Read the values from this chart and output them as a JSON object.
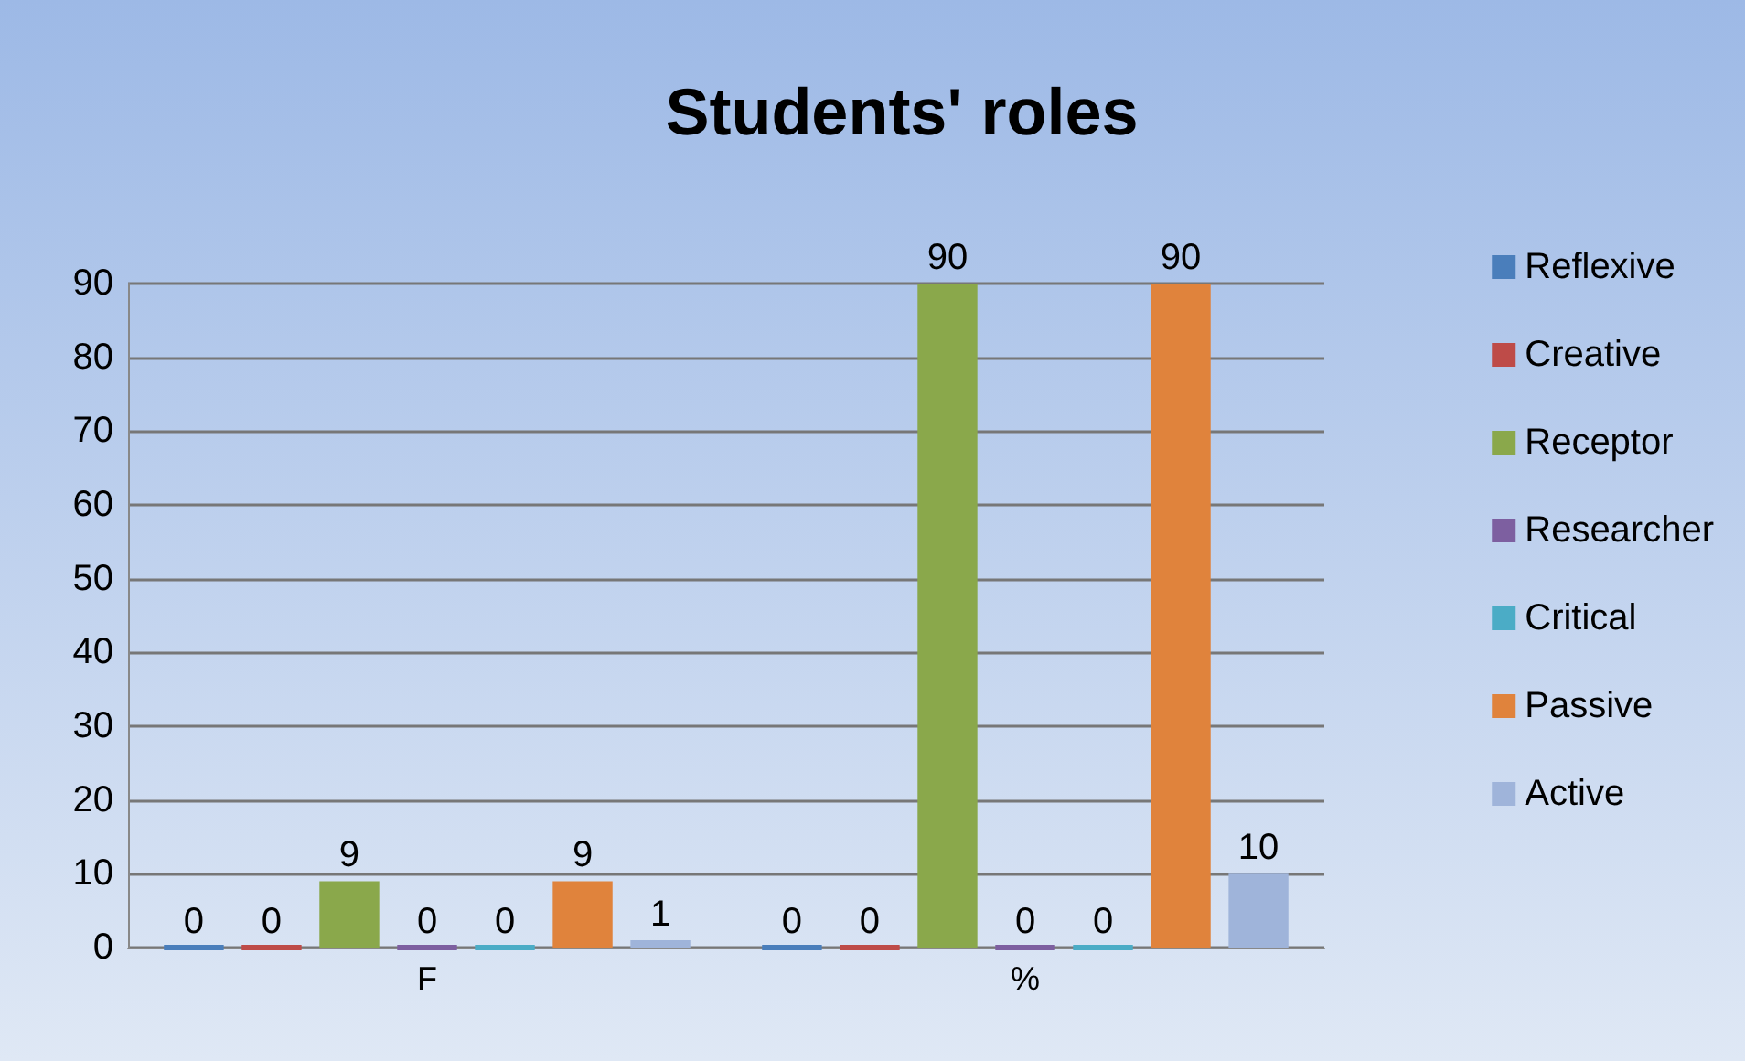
{
  "chart_data": {
    "type": "bar",
    "title": "Students' roles",
    "categories": [
      "F",
      "%"
    ],
    "series": [
      {
        "name": "Reflexive",
        "color": "#4a7ebb",
        "values": [
          0,
          0
        ]
      },
      {
        "name": "Creative",
        "color": "#be4b48",
        "values": [
          0,
          0
        ]
      },
      {
        "name": "Receptor",
        "color": "#8aa84b",
        "values": [
          9,
          90
        ]
      },
      {
        "name": "Researcher",
        "color": "#7d5fa0",
        "values": [
          0,
          0
        ]
      },
      {
        "name": "Critical",
        "color": "#4bacc6",
        "values": [
          0,
          0
        ]
      },
      {
        "name": "Passive",
        "color": "#e0833c",
        "values": [
          9,
          90
        ]
      },
      {
        "name": "Active",
        "color": "#9fb4da",
        "values": [
          1,
          10
        ]
      }
    ],
    "ylim": [
      0,
      90
    ],
    "yticks": [
      0,
      10,
      20,
      30,
      40,
      50,
      60,
      70,
      80,
      90
    ],
    "grid": "y",
    "legend": "right",
    "data_labels": true
  }
}
